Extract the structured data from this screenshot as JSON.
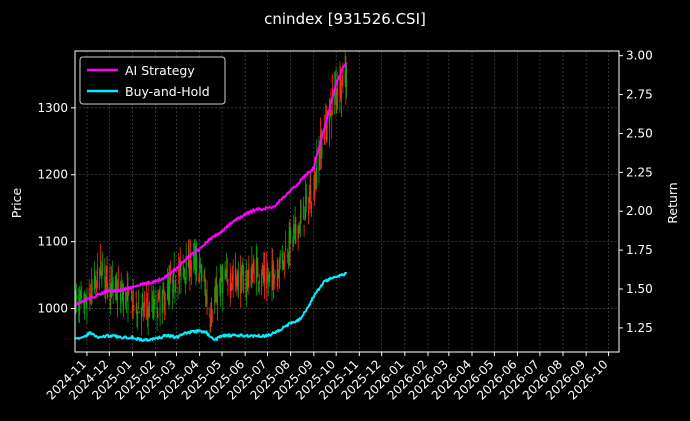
{
  "chart_data": {
    "type": "line",
    "title": "cnindex [931526.CSI]",
    "ylabel_left": "Price",
    "ylabel_right": "Return",
    "xlabel": "",
    "x_ticks": [
      "2024-11",
      "2024-12",
      "2025-01",
      "2025-02",
      "2025-03",
      "2025-04",
      "2025-05",
      "2025-06",
      "2025-07",
      "2025-08",
      "2025-09",
      "2025-10",
      "2025-11",
      "2025-12",
      "2026-01",
      "2026-02",
      "2026-03",
      "2026-04",
      "2026-05",
      "2026-06",
      "2026-07",
      "2026-08",
      "2026-09",
      "2026-10"
    ],
    "y_left_ticks": [
      1000,
      1100,
      1200,
      1300
    ],
    "y_left_range": [
      935,
      1385
    ],
    "y_right_ticks": [
      1.25,
      1.5,
      1.75,
      2.0,
      2.25,
      2.5,
      2.75,
      3.0
    ],
    "y_right_range": [
      1.095,
      3.03
    ],
    "x_range": [
      "2024-10-16",
      "2026-10-15"
    ],
    "grid": true,
    "legend_position": "top-left",
    "colors": {
      "background": "#000000",
      "ai": "#ff00ff",
      "bh": "#00f0ff",
      "candle_up": "#ff2a1a",
      "candle_down": "#10a010",
      "grid": "#5a5a5a"
    },
    "series": [
      {
        "name": "AI Strategy",
        "axis": "right",
        "x": [
          "2024-10-16",
          "2024-11-01",
          "2024-11-15",
          "2024-12-01",
          "2024-12-15",
          "2025-01-01",
          "2025-01-15",
          "2025-02-01",
          "2025-02-15",
          "2025-03-01",
          "2025-03-15",
          "2025-04-01",
          "2025-04-15",
          "2025-05-01",
          "2025-05-15",
          "2025-06-01",
          "2025-06-15",
          "2025-07-01",
          "2025-07-10",
          "2025-07-20",
          "2025-08-01",
          "2025-08-15",
          "2025-08-25",
          "2025-09-01",
          "2025-09-10",
          "2025-09-20",
          "2025-10-01",
          "2025-10-10",
          "2025-10-15"
        ],
        "values": [
          1.4,
          1.43,
          1.46,
          1.49,
          1.49,
          1.51,
          1.53,
          1.55,
          1.58,
          1.63,
          1.7,
          1.76,
          1.82,
          1.87,
          1.93,
          1.98,
          2.01,
          2.02,
          2.03,
          2.08,
          2.13,
          2.2,
          2.25,
          2.28,
          2.45,
          2.62,
          2.82,
          2.92,
          2.95
        ]
      },
      {
        "name": "Buy-and-Hold",
        "axis": "right",
        "x": [
          "2024-10-16",
          "2024-10-25",
          "2024-11-05",
          "2024-11-15",
          "2024-12-01",
          "2024-12-15",
          "2025-01-01",
          "2025-01-15",
          "2025-02-01",
          "2025-02-15",
          "2025-03-01",
          "2025-03-15",
          "2025-04-01",
          "2025-04-10",
          "2025-04-20",
          "2025-05-01",
          "2025-05-15",
          "2025-06-01",
          "2025-06-15",
          "2025-07-01",
          "2025-07-15",
          "2025-08-01",
          "2025-08-15",
          "2025-09-01",
          "2025-09-15",
          "2025-10-01",
          "2025-10-15"
        ],
        "values": [
          1.19,
          1.18,
          1.22,
          1.19,
          1.2,
          1.19,
          1.19,
          1.17,
          1.18,
          1.2,
          1.19,
          1.22,
          1.23,
          1.22,
          1.17,
          1.2,
          1.2,
          1.2,
          1.2,
          1.2,
          1.23,
          1.28,
          1.31,
          1.45,
          1.55,
          1.58,
          1.6
        ]
      }
    ],
    "price_path": {
      "x": [
        "2024-10-16",
        "2024-11-01",
        "2024-11-20",
        "2024-12-05",
        "2024-12-20",
        "2025-01-10",
        "2025-01-25",
        "2025-02-10",
        "2025-02-25",
        "2025-03-10",
        "2025-03-25",
        "2025-04-05",
        "2025-04-15",
        "2025-05-01",
        "2025-05-15",
        "2025-06-01",
        "2025-06-15",
        "2025-07-01",
        "2025-07-15",
        "2025-08-01",
        "2025-08-15",
        "2025-09-01",
        "2025-09-10",
        "2025-09-20",
        "2025-10-01",
        "2025-10-15"
      ],
      "values": [
        1010,
        1005,
        1060,
        1030,
        1020,
        1000,
        1000,
        1010,
        1040,
        1060,
        1070,
        1050,
        990,
        1040,
        1045,
        1040,
        1060,
        1040,
        1060,
        1100,
        1130,
        1180,
        1240,
        1280,
        1330,
        1350
      ]
    }
  }
}
